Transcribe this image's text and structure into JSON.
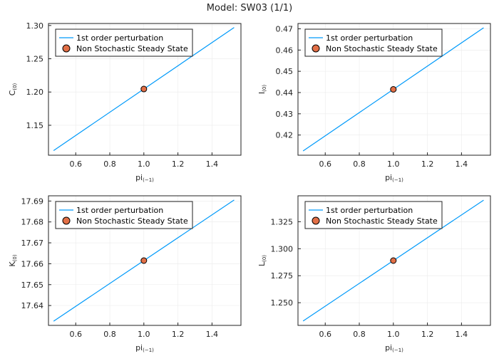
{
  "title": "Model: SW03  (1/1)",
  "colors": {
    "line": "#009AFA",
    "marker": "#E26F46",
    "grid": "#EBEBEB",
    "axis": "#222222"
  },
  "legend": {
    "line_label": "1st order perturbation",
    "marker_label": "Non Stochastic Steady State",
    "placement": "top-left"
  },
  "chart_data": [
    {
      "type": "line",
      "xlabel_main": "pi",
      "xlabel_sub": "(−1)",
      "ylabel_main": "C",
      "ylabel_sub": "(0)",
      "x": [
        0.47,
        1.53
      ],
      "y": [
        1.112,
        1.297
      ],
      "steady_state": {
        "x": 1.0,
        "y": 1.2045
      },
      "xlim": [
        0.44,
        1.57
      ],
      "ylim": [
        1.105,
        1.303
      ],
      "xticks": [
        0.6,
        0.8,
        1.0,
        1.2,
        1.4
      ],
      "xtick_labels": [
        "0.6",
        "0.8",
        "1.0",
        "1.2",
        "1.4"
      ],
      "yticks": [
        1.15,
        1.2,
        1.25,
        1.3
      ],
      "ytick_labels": [
        "1.15",
        "1.20",
        "1.25",
        "1.30"
      ],
      "grid": true
    },
    {
      "type": "line",
      "xlabel_main": "pi",
      "xlabel_sub": "(−1)",
      "ylabel_main": "I",
      "ylabel_sub": "(0)",
      "x": [
        0.47,
        1.53
      ],
      "y": [
        0.4125,
        0.4705
      ],
      "steady_state": {
        "x": 1.0,
        "y": 0.4415
      },
      "xlim": [
        0.44,
        1.57
      ],
      "ylim": [
        0.4105,
        0.4725
      ],
      "xticks": [
        0.6,
        0.8,
        1.0,
        1.2,
        1.4
      ],
      "xtick_labels": [
        "0.6",
        "0.8",
        "1.0",
        "1.2",
        "1.4"
      ],
      "yticks": [
        0.42,
        0.43,
        0.44,
        0.45,
        0.46,
        0.47
      ],
      "ytick_labels": [
        "0.42",
        "0.43",
        "0.44",
        "0.45",
        "0.46",
        "0.47"
      ],
      "grid": true
    },
    {
      "type": "line",
      "xlabel_main": "pi",
      "xlabel_sub": "(−1)",
      "ylabel_main": "K",
      "ylabel_sub": "(0)",
      "x": [
        0.47,
        1.53
      ],
      "y": [
        17.6325,
        17.6905
      ],
      "steady_state": {
        "x": 1.0,
        "y": 17.6615
      },
      "xlim": [
        0.44,
        1.57
      ],
      "ylim": [
        17.6305,
        17.6925
      ],
      "xticks": [
        0.6,
        0.8,
        1.0,
        1.2,
        1.4
      ],
      "xtick_labels": [
        "0.6",
        "0.8",
        "1.0",
        "1.2",
        "1.4"
      ],
      "yticks": [
        17.64,
        17.65,
        17.66,
        17.67,
        17.68,
        17.69
      ],
      "ytick_labels": [
        "17.64",
        "17.65",
        "17.66",
        "17.67",
        "17.68",
        "17.69"
      ],
      "grid": true
    },
    {
      "type": "line",
      "xlabel_main": "pi",
      "xlabel_sub": "(−1)",
      "ylabel_main": "L",
      "ylabel_sub": "(0)",
      "x": [
        0.47,
        1.53
      ],
      "y": [
        1.233,
        1.345
      ],
      "steady_state": {
        "x": 1.0,
        "y": 1.289
      },
      "xlim": [
        0.44,
        1.57
      ],
      "ylim": [
        1.229,
        1.349
      ],
      "xticks": [
        0.6,
        0.8,
        1.0,
        1.2,
        1.4
      ],
      "xtick_labels": [
        "0.6",
        "0.8",
        "1.0",
        "1.2",
        "1.4"
      ],
      "yticks": [
        1.25,
        1.275,
        1.3,
        1.325
      ],
      "ytick_labels": [
        "1.250",
        "1.275",
        "1.300",
        "1.325"
      ],
      "grid": true
    }
  ]
}
